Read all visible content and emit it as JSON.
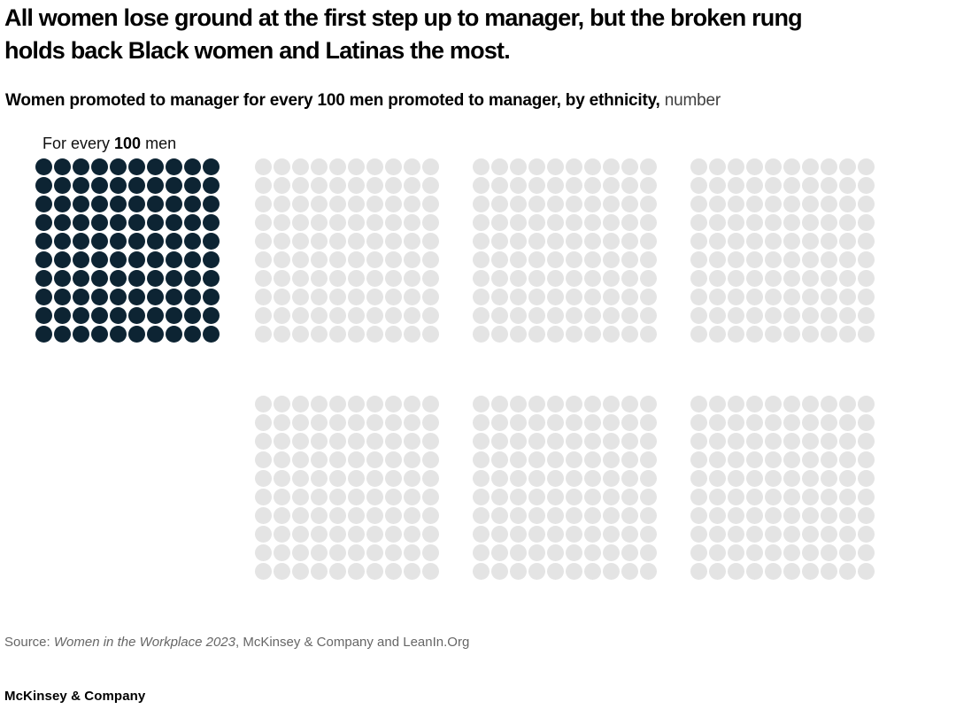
{
  "header": {
    "title_lines": [
      "All women lose ground at the first step up to manager, but the broken rung",
      "holds back Black women and Latinas the most."
    ],
    "subtitle_bold": "Women promoted to manager for every 100 men promoted to manager, by ethnicity,",
    "subtitle_unit": " number"
  },
  "chart_data": {
    "type": "waffle",
    "title": "Women promoted to manager for every 100 men promoted to manager, by ethnicity, number",
    "unit_label": {
      "prefix": "For every ",
      "value": "100",
      "suffix": " men"
    },
    "grid": {
      "rows": 10,
      "cols": 10,
      "dot_total": 100
    },
    "colors": {
      "filled": "#0d2433",
      "empty": "#e4e4e4"
    },
    "layout": {
      "slot_columns": 4,
      "slot_rows": 2
    },
    "groups": [
      {
        "name": "waffle-men-baseline",
        "slot_row": 0,
        "slot_col": 0,
        "filled": 100
      },
      {
        "name": "waffle-group-2",
        "slot_row": 0,
        "slot_col": 1,
        "filled": 0
      },
      {
        "name": "waffle-group-3",
        "slot_row": 0,
        "slot_col": 2,
        "filled": 0
      },
      {
        "name": "waffle-group-4",
        "slot_row": 0,
        "slot_col": 3,
        "filled": 0
      },
      {
        "name": "waffle-group-5",
        "slot_row": 1,
        "slot_col": 1,
        "filled": 0
      },
      {
        "name": "waffle-group-6",
        "slot_row": 1,
        "slot_col": 2,
        "filled": 0
      },
      {
        "name": "waffle-group-7",
        "slot_row": 1,
        "slot_col": 3,
        "filled": 0
      }
    ]
  },
  "source": {
    "prefix": "Source: ",
    "publication": "Women in the Workplace 2023",
    "rest": ", McKinsey & Company and LeanIn.Org"
  },
  "footer": {
    "brand": "McKinsey & Company"
  }
}
